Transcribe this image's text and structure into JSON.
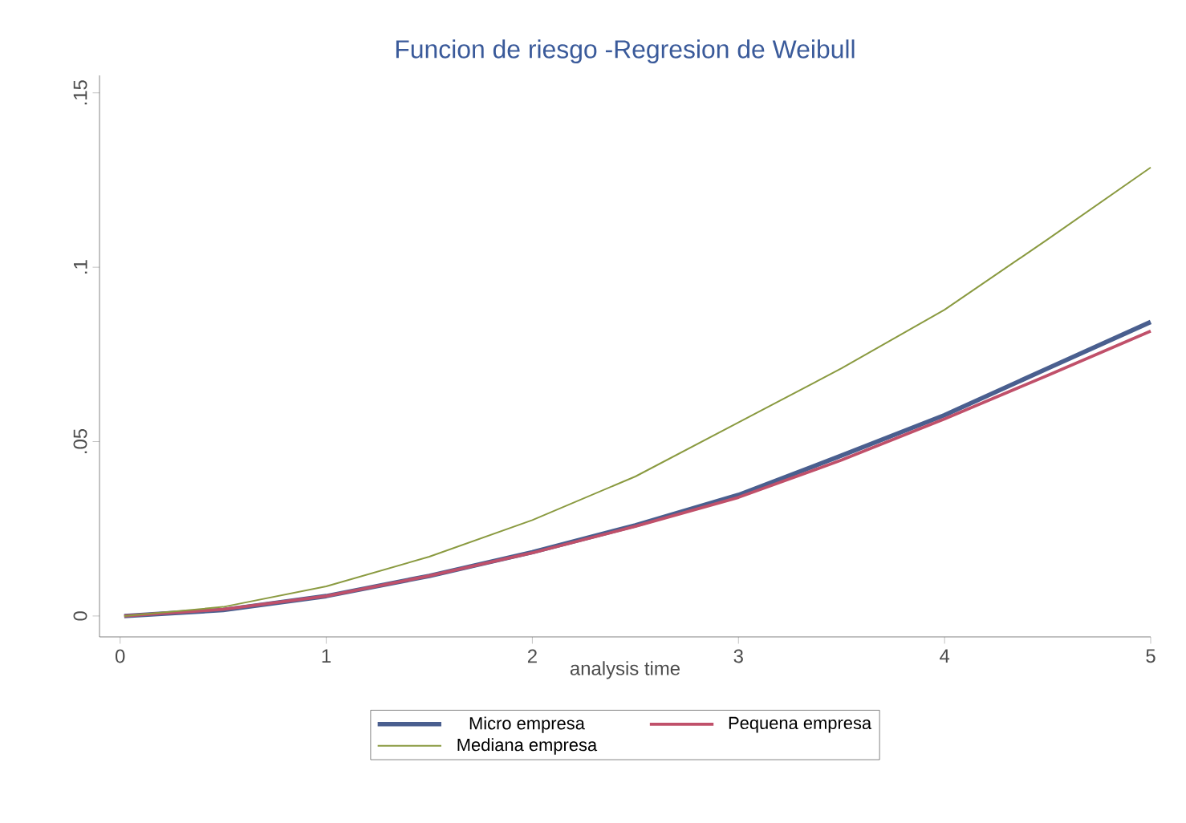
{
  "chart_data": {
    "type": "line",
    "title": "Funcion de riesgo -Regresion de Weibull",
    "xlabel": "analysis time",
    "xlim": [
      -0.1,
      5
    ],
    "ylim": [
      -0.006,
      0.155
    ],
    "xticks": [
      0,
      1,
      2,
      3,
      4,
      5
    ],
    "yticks": [
      {
        "value": 0,
        "label": "0"
      },
      {
        "value": 0.05,
        "label": ".05"
      },
      {
        "value": 0.1,
        "label": ".1"
      },
      {
        "value": 0.15,
        "label": ".15"
      }
    ],
    "grid": false,
    "legend": "bottom",
    "marker": "none",
    "line_style": "solid",
    "x": [
      0.02,
      0.5,
      1,
      1.5,
      2,
      2.5,
      3,
      3.5,
      4,
      4.5,
      5
    ],
    "series": [
      {
        "name": "Micro empresa",
        "color": "#4a5f8f",
        "values": [
          0,
          0.0017,
          0.0057,
          0.0115,
          0.0183,
          0.026,
          0.0347,
          0.046,
          0.0576,
          0.071,
          0.0843
        ]
      },
      {
        "name": "Pequena empresa",
        "color": "#c0506a",
        "values": [
          0,
          0.0019,
          0.0057,
          0.0115,
          0.0181,
          0.0257,
          0.034,
          0.0447,
          0.0565,
          0.069,
          0.0817
        ]
      },
      {
        "name": "Mediana empresa",
        "color": "#8a9a40",
        "values": [
          0,
          0.0026,
          0.0085,
          0.017,
          0.0275,
          0.04,
          0.0555,
          0.071,
          0.0878,
          0.108,
          0.1286
        ]
      }
    ]
  }
}
